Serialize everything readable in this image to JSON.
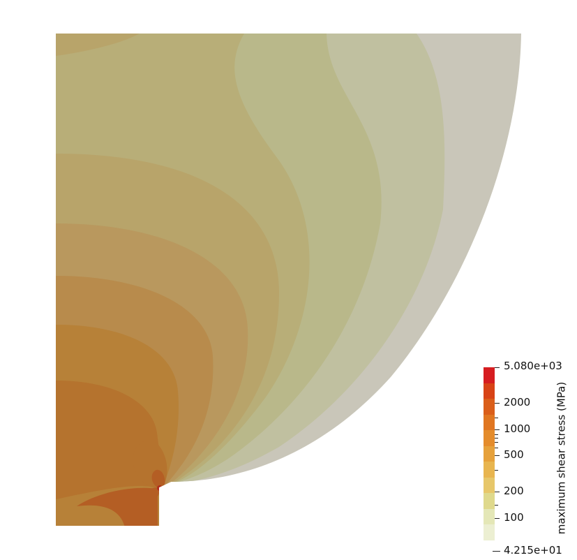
{
  "render": {
    "palette": {
      "background": "#ffffff",
      "bands": [
        "#ecefd2",
        "#e4e7b7",
        "#dfd98c",
        "#e7c76a",
        "#e8b54f",
        "#e6a13b",
        "#e48c2c",
        "#e07621",
        "#da5e1a",
        "#d84316",
        "#d61d20"
      ],
      "field_outer": "#c9c6b9",
      "field_2": "#c0c0a0",
      "field_3": "#b9b88a",
      "field_4": "#b8ae78",
      "field_5": "#b8a46a",
      "field_6": "#b9985e",
      "field_7": "#b88b4c",
      "field_8": "#b78138",
      "field_9": "#b5732e",
      "field_hot": "#b45e24",
      "field_peak": "#b0301c"
    }
  },
  "colorbar": {
    "title": "maximum shear stress (MPa)",
    "max_label": "5.080e+03",
    "min_label": "4.215e+01",
    "ticks": [
      {
        "label": "2000"
      },
      {
        "label": "1000"
      },
      {
        "label": "500"
      },
      {
        "label": "200"
      },
      {
        "label": "100"
      }
    ]
  }
}
